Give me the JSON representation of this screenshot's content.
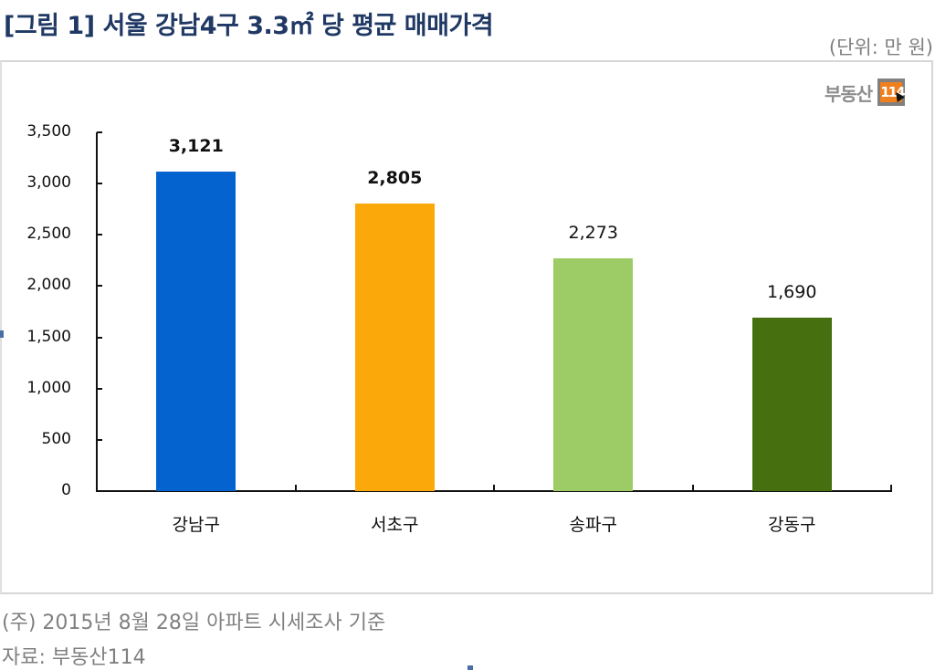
{
  "header": {
    "title": "[그림 1] 서울 강남4구 3.3㎡ 당 평균 매매가격",
    "unit": "(단위: 만 원)"
  },
  "logo": {
    "text": "부동산",
    "badge": "114"
  },
  "footer": {
    "note": "(주) 2015년 8월 28일 아파트 시세조사 기준",
    "source": "자료: 부동산114"
  },
  "chart_data": {
    "type": "bar",
    "title": "[그림 1] 서울 강남4구 3.3㎡ 당 평균 매매가격",
    "xlabel": "",
    "ylabel": "(단위: 만 원)",
    "ylim": [
      0,
      3500
    ],
    "yticks": [
      "0",
      "500",
      "1,000",
      "1,500",
      "2,000",
      "2,500",
      "3,000",
      "3,500"
    ],
    "categories": [
      "강남구",
      "서초구",
      "송파구",
      "강동구"
    ],
    "values": [
      3121,
      2805,
      2273,
      1690
    ],
    "value_labels": [
      "3,121",
      "2,805",
      "2,273",
      "1,690"
    ],
    "bold_labels": [
      true,
      true,
      false,
      false
    ],
    "colors": [
      "#0563cf",
      "#fba90a",
      "#9dcb66",
      "#467010"
    ],
    "grid": false,
    "legend": "none"
  }
}
